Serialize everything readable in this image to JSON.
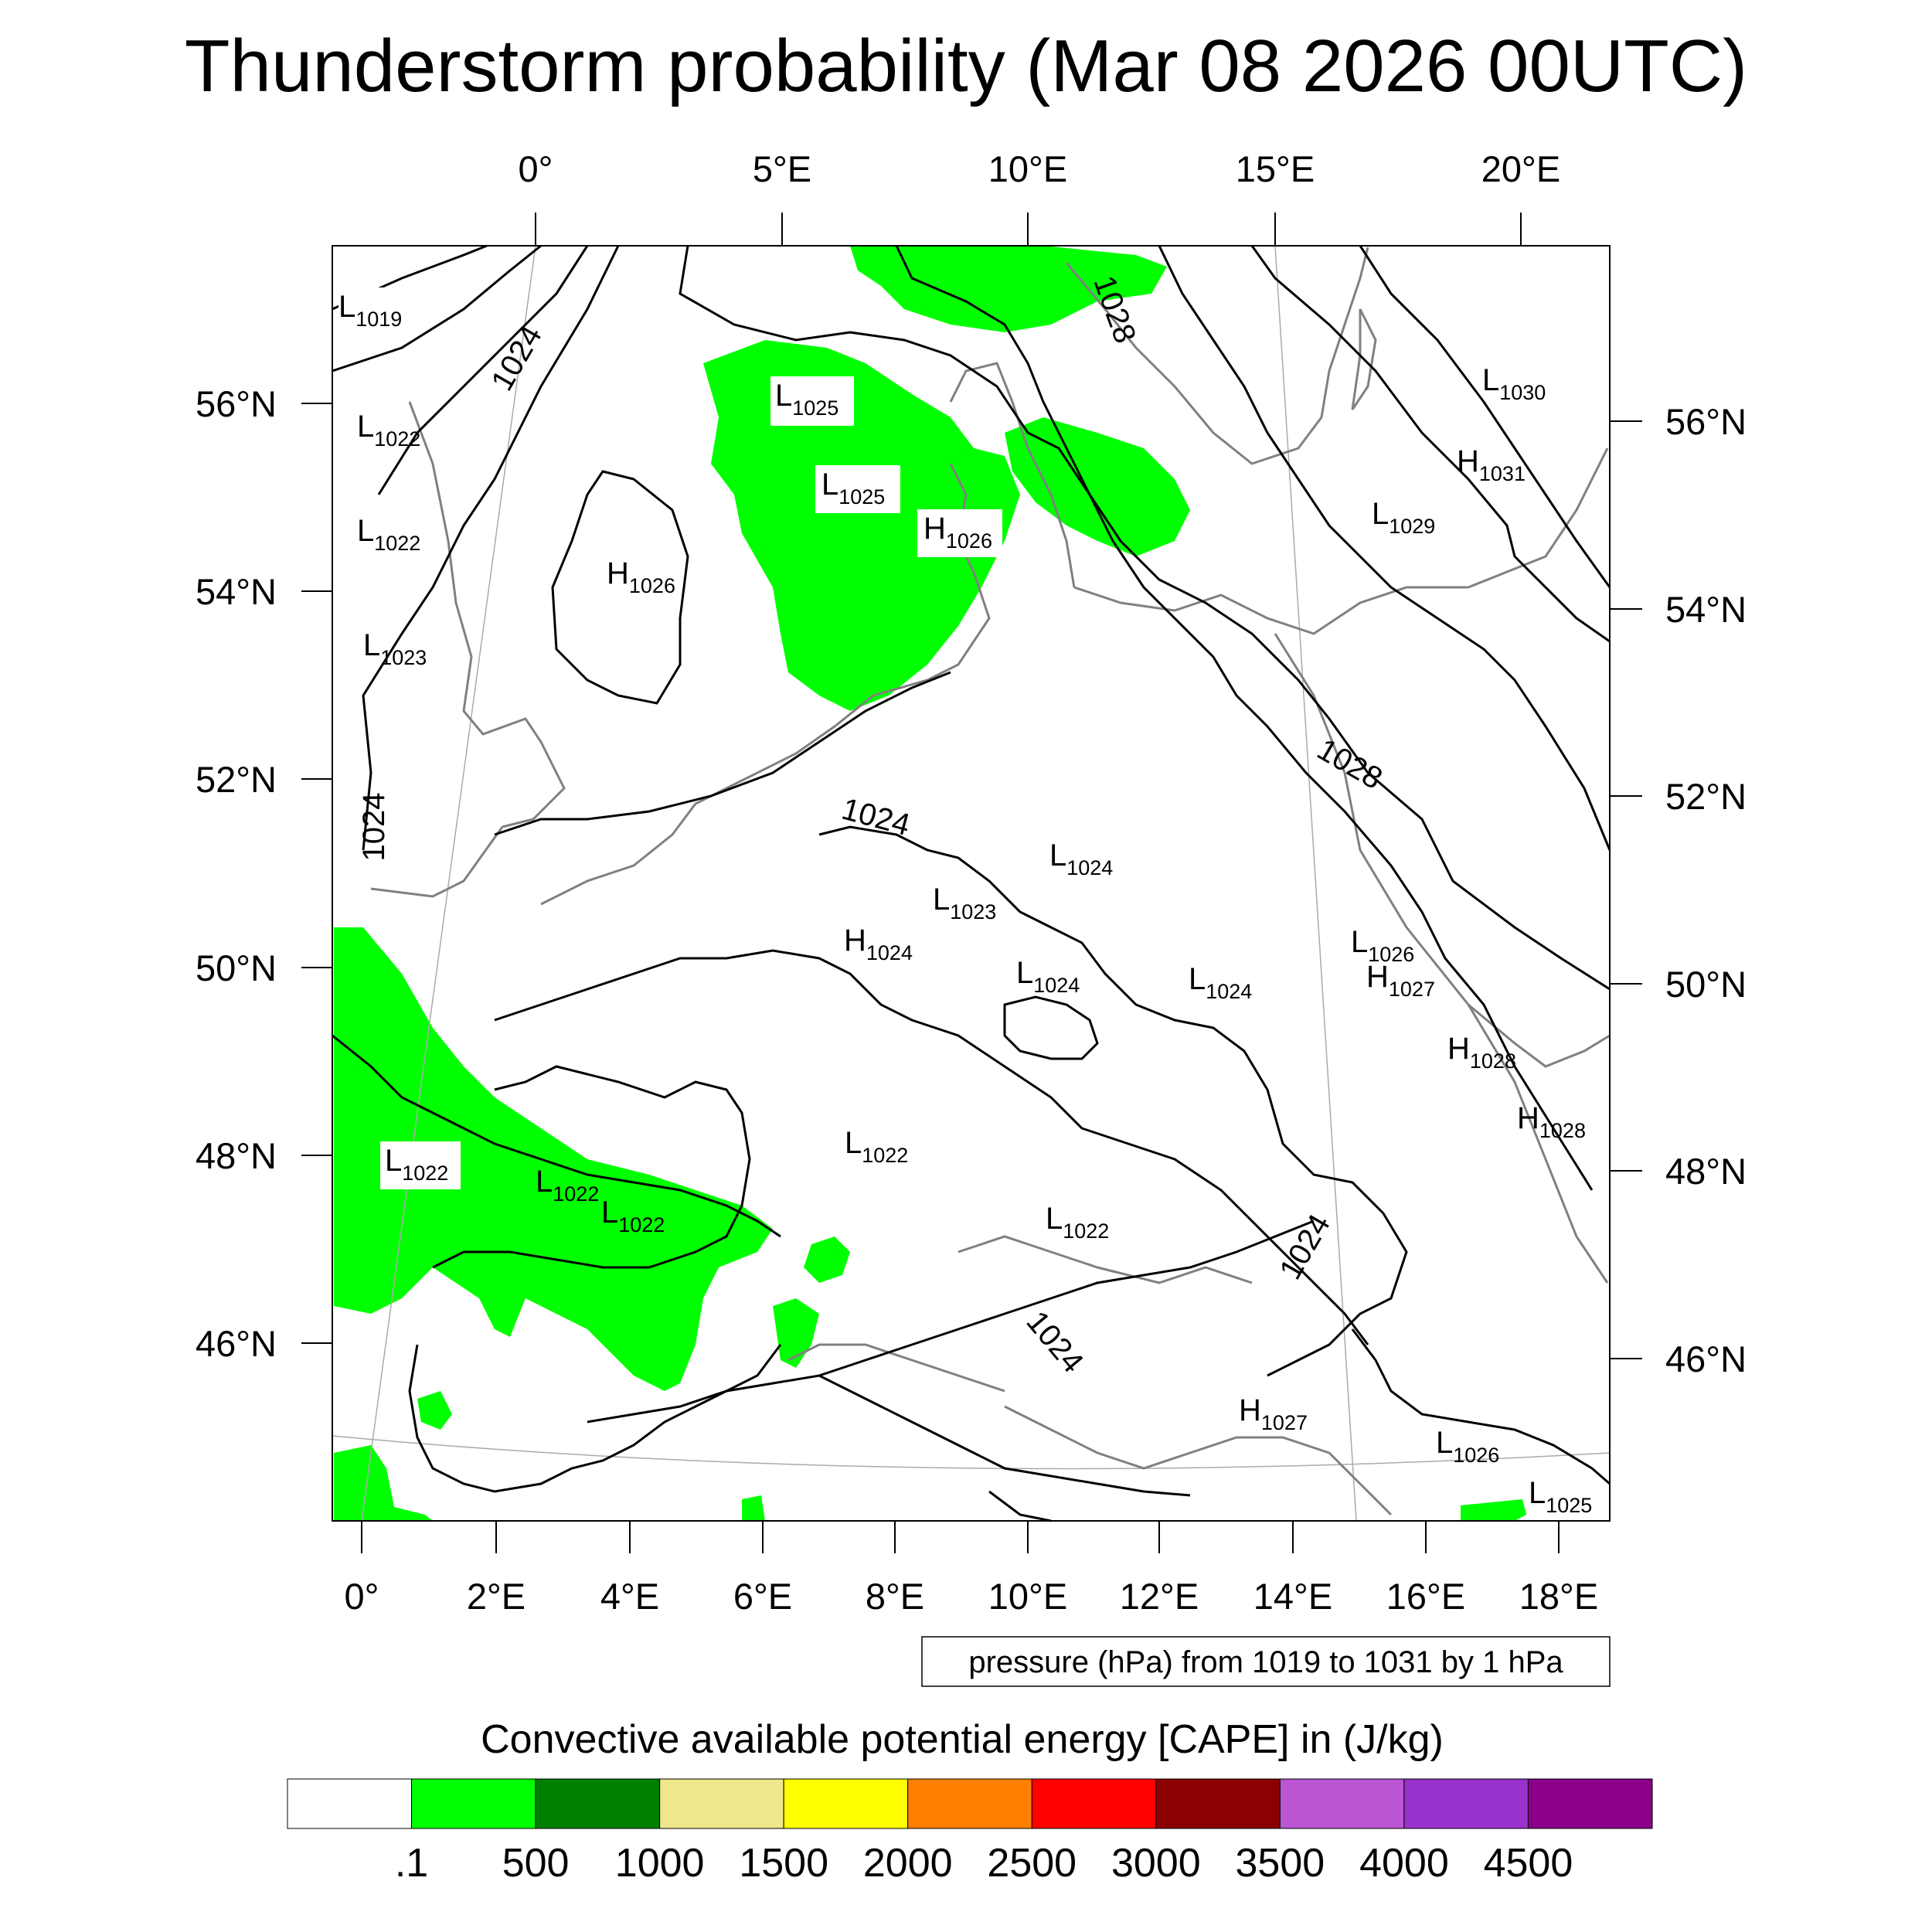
{
  "title": "Thunderstorm probability (Mar 08 2026 00UTC)",
  "map": {
    "top_lon_ticks": [
      "0°",
      "5°E",
      "10°E",
      "15°E",
      "20°E"
    ],
    "bottom_lon_ticks": [
      "0°",
      "2°E",
      "4°E",
      "6°E",
      "8°E",
      "10°E",
      "12°E",
      "14°E",
      "16°E",
      "18°E"
    ],
    "left_lat_ticks": [
      "56°N",
      "54°N",
      "52°N",
      "50°N",
      "48°N",
      "46°N"
    ],
    "right_lat_ticks": [
      "56°N",
      "54°N",
      "52°N",
      "50°N",
      "48°N",
      "46°N"
    ],
    "contour_labels": [
      "1024",
      "1028",
      "1024",
      "1028",
      "1024",
      "1024",
      "1024"
    ],
    "pressure_centers": [
      {
        "type": "L",
        "value": "1019"
      },
      {
        "type": "L",
        "value": "1022"
      },
      {
        "type": "L",
        "value": "1022"
      },
      {
        "type": "L",
        "value": "1023"
      },
      {
        "type": "H",
        "value": "1026"
      },
      {
        "type": "L",
        "value": "1025"
      },
      {
        "type": "L",
        "value": "1025"
      },
      {
        "type": "H",
        "value": "1026"
      },
      {
        "type": "L",
        "value": "1024"
      },
      {
        "type": "L",
        "value": "1023"
      },
      {
        "type": "H",
        "value": "1024"
      },
      {
        "type": "L",
        "value": "1024"
      },
      {
        "type": "L",
        "value": "1024"
      },
      {
        "type": "L",
        "value": "1022"
      },
      {
        "type": "L",
        "value": "1022"
      },
      {
        "type": "L",
        "value": "1022"
      },
      {
        "type": "L",
        "value": "1022"
      },
      {
        "type": "L",
        "value": "1022"
      },
      {
        "type": "H",
        "value": "1027"
      },
      {
        "type": "L",
        "value": "1026"
      },
      {
        "type": "L",
        "value": "1025"
      },
      {
        "type": "L",
        "value": "1026"
      },
      {
        "type": "H",
        "value": "1027"
      },
      {
        "type": "H",
        "value": "1028"
      },
      {
        "type": "H",
        "value": "1028"
      },
      {
        "type": "L",
        "value": "1029"
      },
      {
        "type": "L",
        "value": "1030"
      },
      {
        "type": "H",
        "value": "1031"
      }
    ],
    "info_box": "pressure (hPa) from 1019 to 1031 by 1 hPa"
  },
  "colorbar": {
    "title": "Convective available potential energy [CAPE] in (J/kg)",
    "colors": [
      "#ffffff",
      "#00ff00",
      "#008000",
      "#f0e68c",
      "#ffff00",
      "#ff8000",
      "#ff0000",
      "#8b0000",
      "#ba55d3",
      "#9932cc",
      "#8b008b"
    ],
    "labels": [
      ".1",
      "500",
      "1000",
      "1500",
      "2000",
      "2500",
      "3000",
      "3500",
      "4000",
      "4500"
    ]
  }
}
